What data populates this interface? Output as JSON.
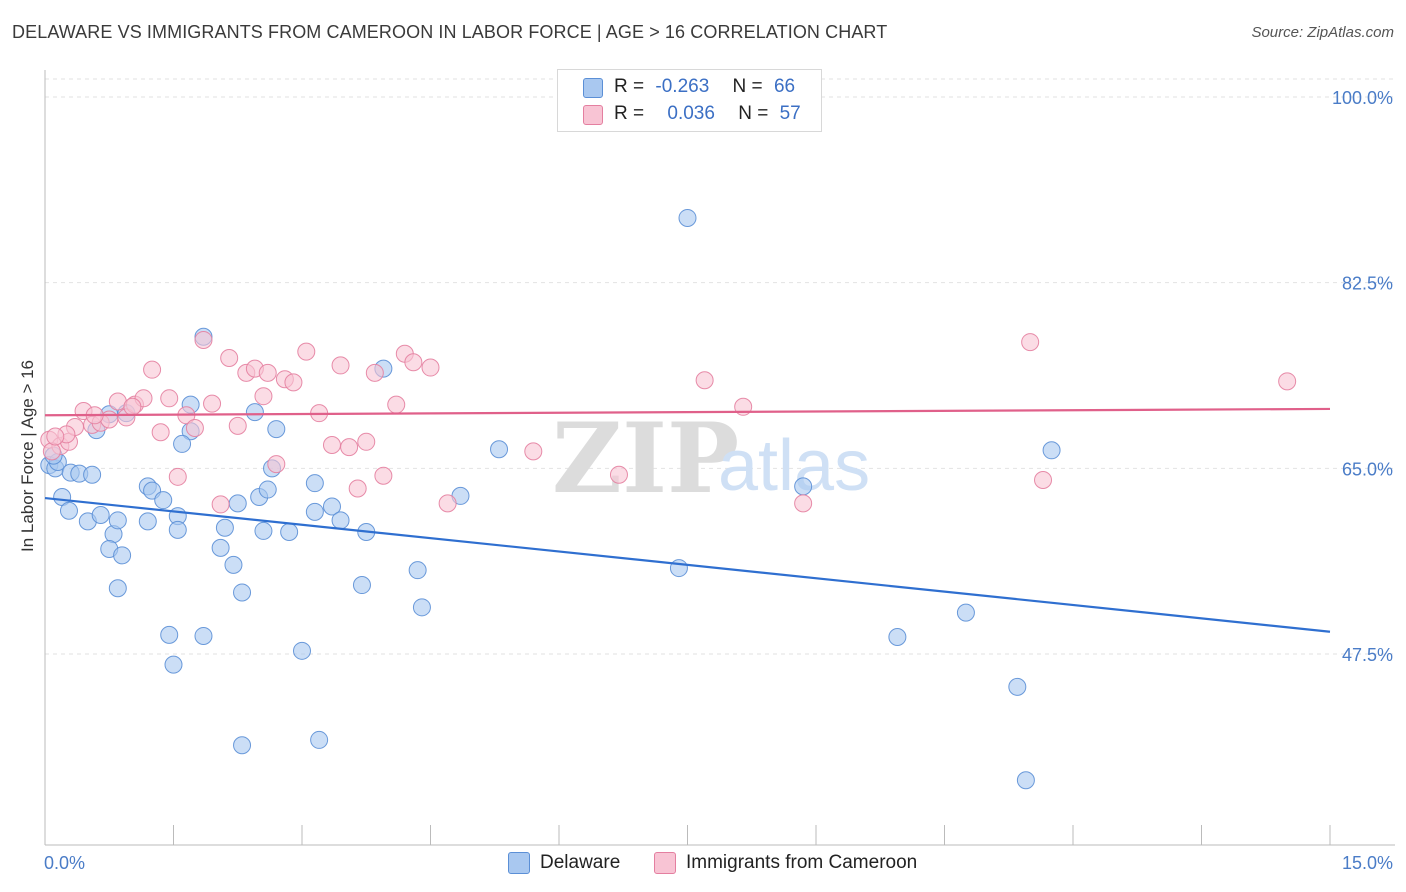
{
  "title": "DELAWARE VS IMMIGRANTS FROM CAMEROON IN LABOR FORCE | AGE > 16 CORRELATION CHART",
  "source": "Source: ZipAtlas.com",
  "watermark": {
    "zip": "ZIP",
    "atlas": "atlas"
  },
  "legend": {
    "rows": [
      {
        "r_label": "R =",
        "r_value": "-0.263",
        "n_label": "N =",
        "n_value": "66",
        "color": "#a9c8f0",
        "border": "#5b8fd6"
      },
      {
        "r_label": "R =",
        "r_value": "0.036",
        "n_label": "N =",
        "n_value": "57",
        "color": "#f8c4d4",
        "border": "#e47fa0"
      }
    ]
  },
  "chart_data": {
    "type": "scatter",
    "title": "DELAWARE VS IMMIGRANTS FROM CAMEROON IN LABOR FORCE | AGE > 16 CORRELATION CHART",
    "xlabel": "",
    "ylabel": "In Labor Force | Age > 16",
    "xlim": [
      0,
      15
    ],
    "ylim": [
      35,
      102
    ],
    "x_tick_labels": [
      "0.0%",
      "15.0%"
    ],
    "y_ticks": [
      47.5,
      65.0,
      82.5,
      100.0
    ],
    "y_tick_labels": [
      "47.5%",
      "65.0%",
      "82.5%",
      "100.0%"
    ],
    "grid": true,
    "legend_position": "top-center",
    "series": [
      {
        "name": "Delaware",
        "color": "#a9c8f0",
        "edge": "#5b8fd6",
        "trend": {
          "x": [
            0,
            15
          ],
          "y": [
            62.2,
            49.6
          ],
          "color": "#2f6fd0"
        },
        "points": [
          [
            0.05,
            65.3
          ],
          [
            0.12,
            65.0
          ],
          [
            0.15,
            65.6
          ],
          [
            0.3,
            64.6
          ],
          [
            0.4,
            64.5
          ],
          [
            0.2,
            62.3
          ],
          [
            0.28,
            61.0
          ],
          [
            0.6,
            68.6
          ],
          [
            0.75,
            70.1
          ],
          [
            0.95,
            70.2
          ],
          [
            1.2,
            63.3
          ],
          [
            1.25,
            62.9
          ],
          [
            1.38,
            62.0
          ],
          [
            1.55,
            60.5
          ],
          [
            1.7,
            68.5
          ],
          [
            1.85,
            77.4
          ],
          [
            1.7,
            71.0
          ],
          [
            1.6,
            67.3
          ],
          [
            0.5,
            60.0
          ],
          [
            0.65,
            60.6
          ],
          [
            0.8,
            58.8
          ],
          [
            0.85,
            60.1
          ],
          [
            1.2,
            60.0
          ],
          [
            1.55,
            59.2
          ],
          [
            2.1,
            59.4
          ],
          [
            2.25,
            61.7
          ],
          [
            2.5,
            62.3
          ],
          [
            2.6,
            63.0
          ],
          [
            2.65,
            65.0
          ],
          [
            2.7,
            68.7
          ],
          [
            2.45,
            70.3
          ],
          [
            2.55,
            59.1
          ],
          [
            2.85,
            59.0
          ],
          [
            3.15,
            60.9
          ],
          [
            3.35,
            61.4
          ],
          [
            3.15,
            63.6
          ],
          [
            3.45,
            60.1
          ],
          [
            3.75,
            59.0
          ],
          [
            3.95,
            74.4
          ],
          [
            4.85,
            62.4
          ],
          [
            5.3,
            66.8
          ],
          [
            0.75,
            57.4
          ],
          [
            0.9,
            56.8
          ],
          [
            2.05,
            57.5
          ],
          [
            2.2,
            55.9
          ],
          [
            0.85,
            53.7
          ],
          [
            2.3,
            53.3
          ],
          [
            3.7,
            54.0
          ],
          [
            4.35,
            55.4
          ],
          [
            4.4,
            51.9
          ],
          [
            1.45,
            49.3
          ],
          [
            1.85,
            49.2
          ],
          [
            3.0,
            47.8
          ],
          [
            1.5,
            46.5
          ],
          [
            2.3,
            38.9
          ],
          [
            3.2,
            39.4
          ],
          [
            7.5,
            88.6
          ],
          [
            7.4,
            55.6
          ],
          [
            8.85,
            63.3
          ],
          [
            9.95,
            49.1
          ],
          [
            10.75,
            51.4
          ],
          [
            11.35,
            44.4
          ],
          [
            11.75,
            66.7
          ],
          [
            11.45,
            35.6
          ],
          [
            0.55,
            64.4
          ],
          [
            0.1,
            66.2
          ]
        ]
      },
      {
        "name": "Immigrants from Cameroon",
        "color": "#f8c4d4",
        "edge": "#e47fa0",
        "trend": {
          "x": [
            0,
            15
          ],
          "y": [
            70.0,
            70.6
          ],
          "color": "#e0608a"
        },
        "points": [
          [
            0.05,
            67.7
          ],
          [
            0.18,
            67.1
          ],
          [
            0.28,
            67.5
          ],
          [
            0.35,
            68.9
          ],
          [
            0.45,
            70.4
          ],
          [
            0.55,
            69.1
          ],
          [
            0.65,
            69.3
          ],
          [
            0.75,
            69.6
          ],
          [
            0.85,
            71.3
          ],
          [
            0.95,
            69.8
          ],
          [
            1.05,
            71.0
          ],
          [
            1.15,
            71.6
          ],
          [
            1.25,
            74.3
          ],
          [
            1.35,
            68.4
          ],
          [
            1.45,
            71.6
          ],
          [
            1.55,
            64.2
          ],
          [
            1.65,
            70.0
          ],
          [
            1.75,
            68.8
          ],
          [
            1.85,
            77.1
          ],
          [
            1.95,
            71.1
          ],
          [
            2.05,
            61.6
          ],
          [
            2.15,
            75.4
          ],
          [
            2.25,
            69.0
          ],
          [
            2.35,
            74.0
          ],
          [
            2.45,
            74.4
          ],
          [
            2.55,
            71.8
          ],
          [
            2.6,
            74.0
          ],
          [
            2.7,
            65.4
          ],
          [
            2.8,
            73.4
          ],
          [
            2.9,
            73.1
          ],
          [
            3.05,
            76.0
          ],
          [
            3.2,
            70.2
          ],
          [
            3.35,
            67.2
          ],
          [
            3.45,
            74.7
          ],
          [
            3.55,
            67.0
          ],
          [
            3.65,
            63.1
          ],
          [
            3.75,
            67.5
          ],
          [
            3.85,
            74.0
          ],
          [
            3.95,
            64.3
          ],
          [
            4.1,
            71.0
          ],
          [
            4.2,
            75.8
          ],
          [
            4.3,
            75.0
          ],
          [
            4.5,
            74.5
          ],
          [
            4.7,
            61.7
          ],
          [
            5.7,
            66.6
          ],
          [
            6.7,
            64.4
          ],
          [
            7.7,
            73.3
          ],
          [
            8.15,
            70.8
          ],
          [
            8.85,
            61.7
          ],
          [
            11.5,
            76.9
          ],
          [
            11.65,
            63.9
          ],
          [
            14.5,
            73.2
          ],
          [
            0.08,
            66.6
          ],
          [
            0.25,
            68.2
          ],
          [
            0.58,
            70.0
          ],
          [
            1.02,
            70.8
          ],
          [
            0.12,
            68.0
          ]
        ]
      }
    ]
  },
  "bottom_legend": [
    {
      "label": "Delaware",
      "color": "#a9c8f0",
      "border": "#5b8fd6"
    },
    {
      "label": "Immigrants from Cameroon",
      "color": "#f8c4d4",
      "border": "#e47fa0"
    }
  ]
}
